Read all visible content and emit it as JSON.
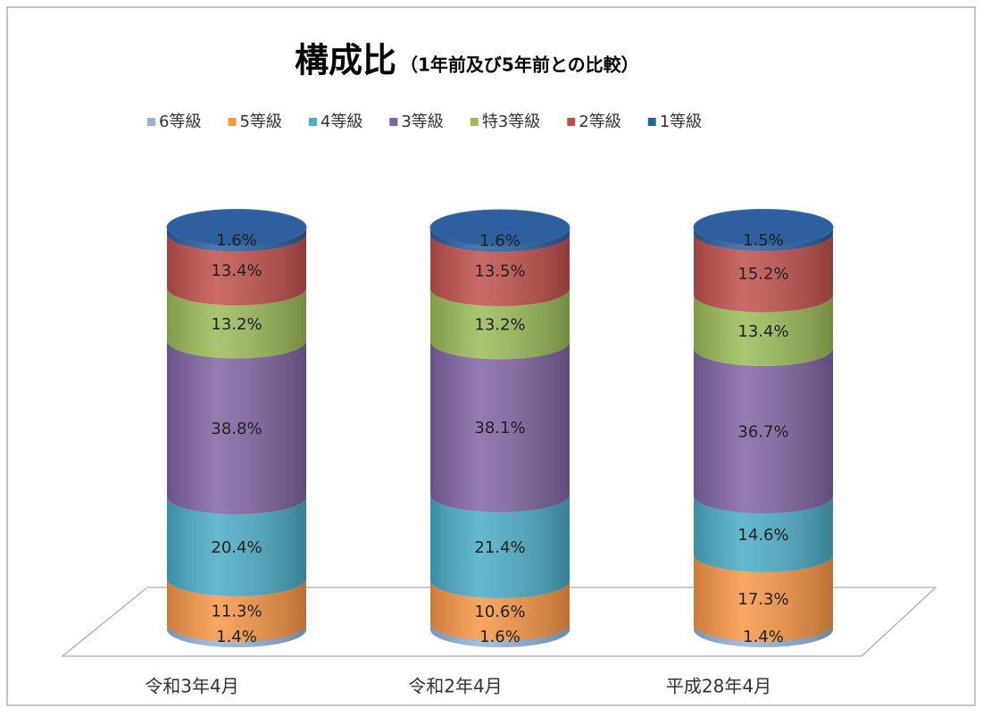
{
  "chart_data": {
    "type": "stacked-cylinder",
    "title": "構成比",
    "subtitle": "（1年前及び5年前との比較）",
    "categories": [
      "令和3年4月",
      "令和2年4月",
      "平成28年4月"
    ],
    "series": [
      {
        "name": "6等級",
        "color": "#95b3d7",
        "values": [
          1.4,
          1.6,
          1.4
        ],
        "value_labels": [
          "1.4%",
          "1.6%",
          "1.4%"
        ]
      },
      {
        "name": "5等級",
        "color": "#f79646",
        "values": [
          11.3,
          10.6,
          17.3
        ],
        "value_labels": [
          "11.3%",
          "10.6%",
          "17.3%"
        ]
      },
      {
        "name": "4等級",
        "color": "#4bacc6",
        "values": [
          20.4,
          21.4,
          14.6
        ],
        "value_labels": [
          "20.4%",
          "21.4%",
          "14.6%"
        ]
      },
      {
        "name": "3等級",
        "color": "#8064a2",
        "values": [
          38.8,
          38.1,
          36.7
        ],
        "value_labels": [
          "38.8%",
          "38.1%",
          "36.7%"
        ]
      },
      {
        "name": "特3等級",
        "color": "#9bbb59",
        "values": [
          13.2,
          13.2,
          13.4
        ],
        "value_labels": [
          "13.2%",
          "13.2%",
          "13.4%"
        ]
      },
      {
        "name": "2等級",
        "color": "#c0504d",
        "values": [
          13.4,
          13.5,
          15.2
        ],
        "value_labels": [
          "13.4%",
          "13.5%",
          "15.2%"
        ]
      },
      {
        "name": "1等級",
        "color": "#2e5f9e",
        "values": [
          1.6,
          1.6,
          1.5
        ],
        "value_labels": [
          "1.6%",
          "1.6%",
          "1.5%"
        ]
      }
    ]
  }
}
